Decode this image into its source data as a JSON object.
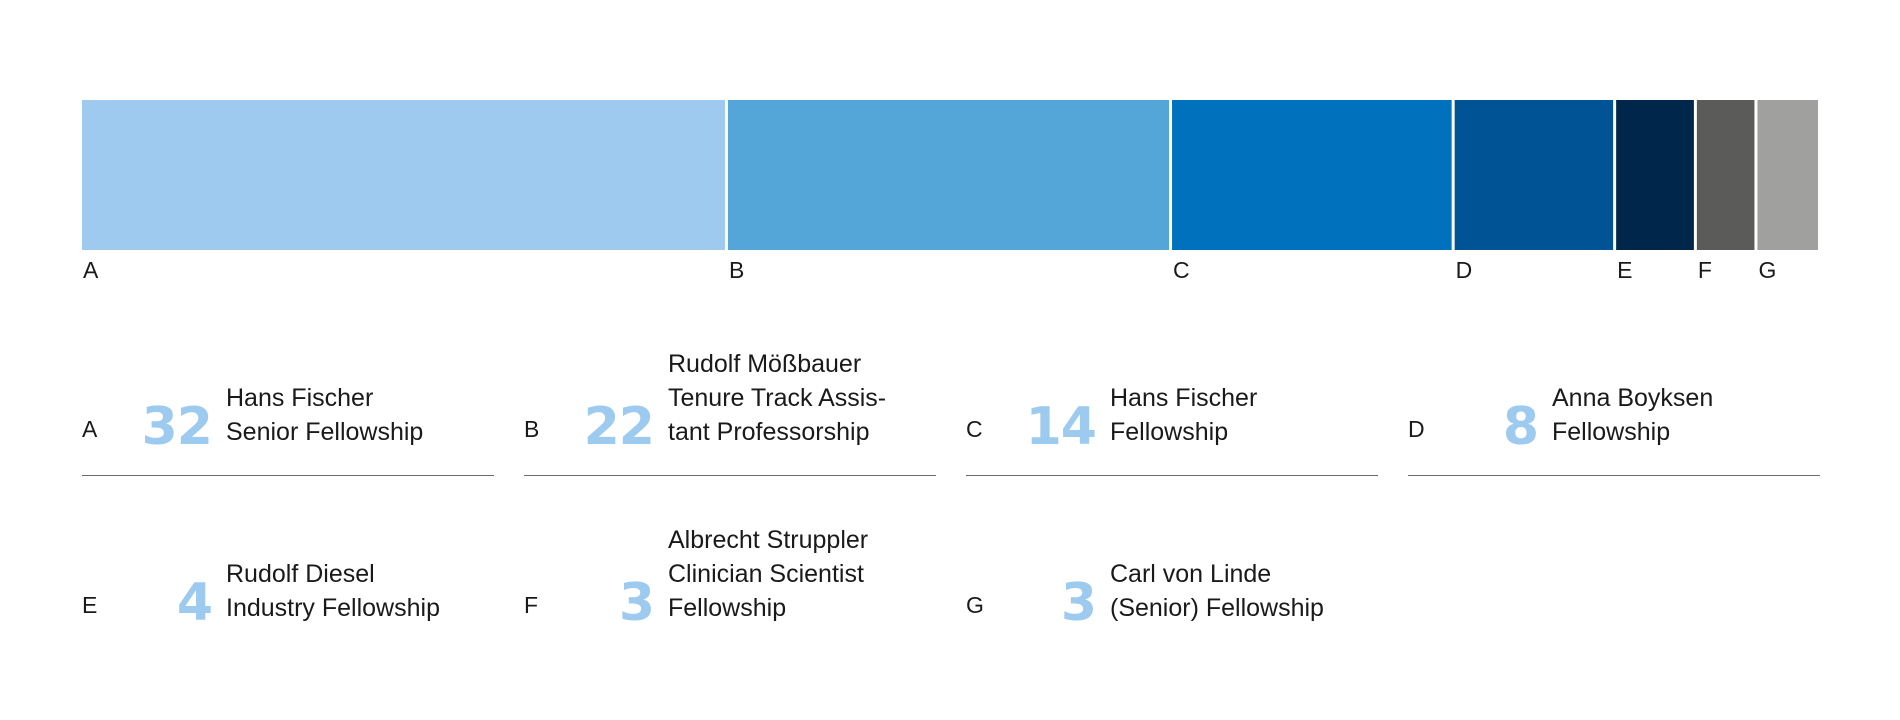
{
  "chart_data": {
    "type": "bar",
    "subtype": "stacked-100",
    "categories": [
      "A",
      "B",
      "C",
      "D",
      "E",
      "F",
      "G"
    ],
    "values": [
      32,
      22,
      14,
      8,
      4,
      3,
      3
    ],
    "colors": [
      "#9dcaee",
      "#55a6d8",
      "#0071bc",
      "#005495",
      "#00264b",
      "#5b5b59",
      "#a0a09f"
    ]
  },
  "legend": [
    {
      "letter": "A",
      "number": "32",
      "name": "Hans Fischer\nSenior Fellowship"
    },
    {
      "letter": "B",
      "number": "22",
      "name": "Rudolf Mößbauer\nTenure Track Assis-\ntant Professorship"
    },
    {
      "letter": "C",
      "number": "14",
      "name": "Hans Fischer\nFellowship"
    },
    {
      "letter": "D",
      "number": "8",
      "name": "Anna Boyksen\nFellowship"
    },
    {
      "letter": "E",
      "number": "4",
      "name": "Rudolf Diesel\nIndustry Fellowship"
    },
    {
      "letter": "F",
      "number": "3",
      "name": "Albrecht Struppler\nClinician Scientist\nFellowship"
    },
    {
      "letter": "G",
      "number": "3",
      "name": "Carl von Linde\n(Senior) Fellowship"
    }
  ]
}
